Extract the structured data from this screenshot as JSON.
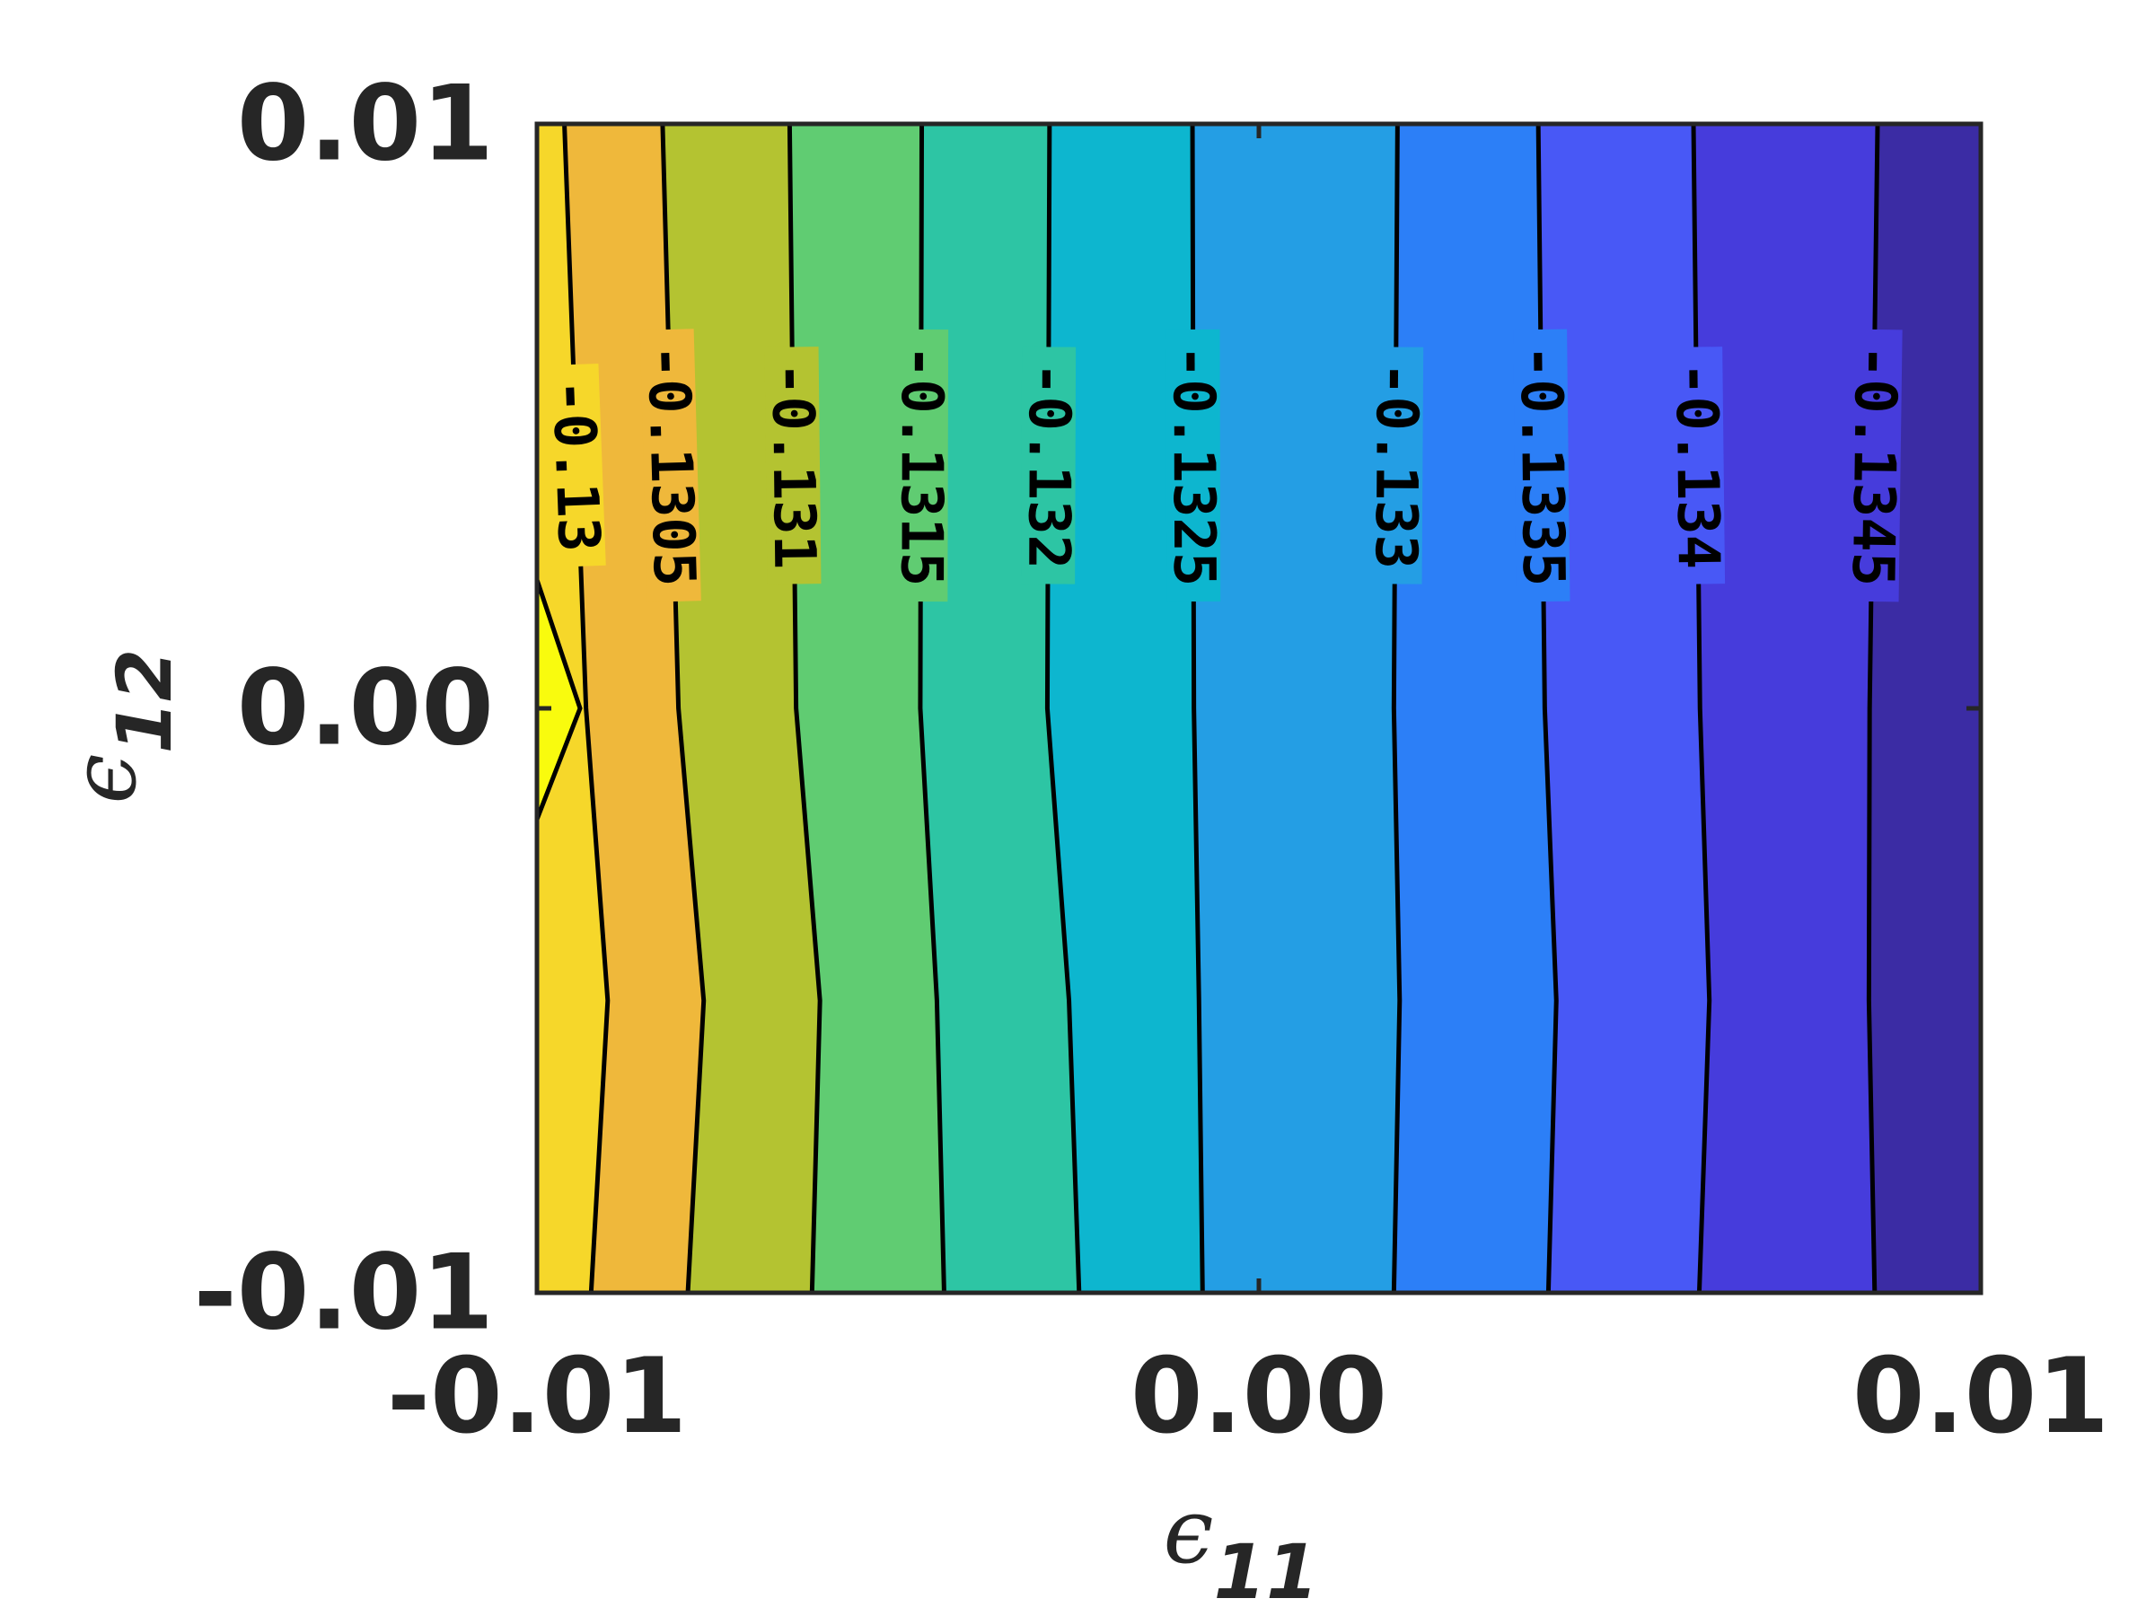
{
  "chart_data": {
    "type": "contour",
    "xlabel": "ϵ",
    "xlabel_sub": "11",
    "ylabel": "ϵ",
    "ylabel_sub": "12",
    "xlim": [
      -0.01,
      0.01
    ],
    "ylim": [
      -0.01,
      0.01
    ],
    "xticks": [
      {
        "value": -0.01,
        "label": "-0.01"
      },
      {
        "value": 0.0,
        "label": "0.00"
      },
      {
        "value": 0.01,
        "label": "0.01"
      }
    ],
    "yticks": [
      {
        "value": -0.01,
        "label": "-0.01"
      },
      {
        "value": 0.0,
        "label": "0.00"
      },
      {
        "value": 0.01,
        "label": "0.01"
      }
    ],
    "colormap": [
      "#f9fb0e",
      "#f6d72a",
      "#efb83b",
      "#b4c331",
      "#60cc72",
      "#2dc5a4",
      "#0db6cf",
      "#249ee4",
      "#2c7ff7",
      "#4858f6",
      "#463cdc",
      "#3b2ca4"
    ],
    "contour_levels": [
      {
        "level": -0.13,
        "label": "-0.13",
        "x": [
          -0.00925,
          -0.00902,
          -0.00932,
          -0.00962
        ]
      },
      {
        "level": -0.1305,
        "label": "-0.1305",
        "x": [
          -0.00791,
          -0.00769,
          -0.00804,
          -0.00826
        ]
      },
      {
        "level": -0.131,
        "label": "-0.131",
        "x": [
          -0.00619,
          -0.00608,
          -0.00641,
          -0.0065
        ]
      },
      {
        "level": -0.1315,
        "label": "-0.1315",
        "x": [
          -0.00436,
          -0.00446,
          -0.00469,
          -0.00467
        ]
      },
      {
        "level": -0.132,
        "label": "-0.132",
        "x": [
          -0.00249,
          -0.00263,
          -0.00293,
          -0.0029
        ]
      },
      {
        "level": -0.1325,
        "label": "-0.1325",
        "x": [
          -0.00078,
          -0.00083,
          -0.0009,
          -0.00092
        ]
      },
      {
        "level": -0.133,
        "label": "-0.133",
        "x": [
          0.00187,
          0.00195,
          0.00187,
          0.00192
        ]
      },
      {
        "level": -0.1335,
        "label": "-0.1335",
        "x": [
          0.00401,
          0.00412,
          0.00396,
          0.00387
        ]
      },
      {
        "level": -0.134,
        "label": "-0.134",
        "x": [
          0.0061,
          0.00624,
          0.00611,
          0.00602
        ]
      },
      {
        "level": -0.1345,
        "label": "-0.1345",
        "x": [
          0.00853,
          0.00845,
          0.00846,
          0.00857
        ]
      }
    ],
    "contour_y": [
      -0.01,
      -0.005,
      0.0,
      0.01
    ]
  }
}
